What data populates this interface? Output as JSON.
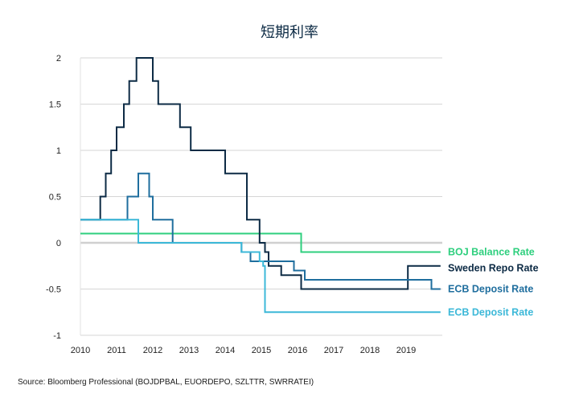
{
  "chart_data": {
    "type": "line",
    "title": "短期利率",
    "source": "Source: Bloomberg Professional (BOJDPBAL, EUORDEPO, SZLTTR, SWRRATEI)",
    "xlabel": "",
    "ylabel": "",
    "xlim": [
      2010,
      2020
    ],
    "ylim": [
      -1,
      2
    ],
    "x_ticks": [
      "2010",
      "2011",
      "2012",
      "2013",
      "2014",
      "2015",
      "2016",
      "2017",
      "2018",
      "2019"
    ],
    "y_ticks": [
      "2",
      "1.5",
      "1",
      "0.5",
      "0",
      "-0.5",
      "-1"
    ],
    "grid": true,
    "legend_position": "right",
    "series": [
      {
        "name": "BOJ Balance Rate",
        "color": "#2ecf7e",
        "points": [
          [
            2010.0,
            0.1
          ],
          [
            2016.1,
            0.1
          ],
          [
            2016.1,
            -0.1
          ],
          [
            2019.95,
            -0.1
          ]
        ]
      },
      {
        "name": "Sweden Repo Rate",
        "color": "#0d2b45",
        "points": [
          [
            2010.0,
            0.25
          ],
          [
            2010.55,
            0.25
          ],
          [
            2010.55,
            0.5
          ],
          [
            2010.7,
            0.5
          ],
          [
            2010.7,
            0.75
          ],
          [
            2010.85,
            0.75
          ],
          [
            2010.85,
            1.0
          ],
          [
            2011.0,
            1.0
          ],
          [
            2011.0,
            1.25
          ],
          [
            2011.2,
            1.25
          ],
          [
            2011.2,
            1.5
          ],
          [
            2011.35,
            1.5
          ],
          [
            2011.35,
            1.75
          ],
          [
            2011.55,
            1.75
          ],
          [
            2011.55,
            2.0
          ],
          [
            2012.0,
            2.0
          ],
          [
            2012.0,
            1.75
          ],
          [
            2012.15,
            1.75
          ],
          [
            2012.15,
            1.5
          ],
          [
            2012.75,
            1.5
          ],
          [
            2012.75,
            1.25
          ],
          [
            2013.05,
            1.25
          ],
          [
            2013.05,
            1.0
          ],
          [
            2014.0,
            1.0
          ],
          [
            2014.0,
            0.75
          ],
          [
            2014.6,
            0.75
          ],
          [
            2014.6,
            0.25
          ],
          [
            2014.95,
            0.25
          ],
          [
            2014.95,
            0.0
          ],
          [
            2015.1,
            0.0
          ],
          [
            2015.1,
            -0.1
          ],
          [
            2015.2,
            -0.1
          ],
          [
            2015.2,
            -0.25
          ],
          [
            2015.55,
            -0.25
          ],
          [
            2015.55,
            -0.35
          ],
          [
            2016.1,
            -0.35
          ],
          [
            2016.1,
            -0.5
          ],
          [
            2019.05,
            -0.5
          ],
          [
            2019.05,
            -0.25
          ],
          [
            2019.95,
            -0.25
          ]
        ]
      },
      {
        "name": "ECB Deposit Rate",
        "color": "#1f6e9e",
        "points": [
          [
            2010.0,
            0.25
          ],
          [
            2011.3,
            0.25
          ],
          [
            2011.3,
            0.5
          ],
          [
            2011.6,
            0.5
          ],
          [
            2011.6,
            0.75
          ],
          [
            2011.9,
            0.75
          ],
          [
            2011.9,
            0.5
          ],
          [
            2012.0,
            0.5
          ],
          [
            2012.0,
            0.25
          ],
          [
            2012.55,
            0.25
          ],
          [
            2012.55,
            0.0
          ],
          [
            2014.45,
            0.0
          ],
          [
            2014.45,
            -0.1
          ],
          [
            2014.7,
            -0.1
          ],
          [
            2014.7,
            -0.2
          ],
          [
            2015.9,
            -0.2
          ],
          [
            2015.9,
            -0.3
          ],
          [
            2016.2,
            -0.3
          ],
          [
            2016.2,
            -0.4
          ],
          [
            2019.7,
            -0.4
          ],
          [
            2019.7,
            -0.5
          ],
          [
            2019.95,
            -0.5
          ]
        ]
      },
      {
        "name": "ECB Deposit Rate",
        "color": "#3cb8d8",
        "points": [
          [
            2010.0,
            0.25
          ],
          [
            2011.6,
            0.25
          ],
          [
            2011.6,
            0.0
          ],
          [
            2014.45,
            0.0
          ],
          [
            2014.45,
            -0.1
          ],
          [
            2014.95,
            -0.1
          ],
          [
            2014.95,
            -0.2
          ],
          [
            2015.05,
            -0.2
          ],
          [
            2015.05,
            -0.25
          ],
          [
            2015.1,
            -0.25
          ],
          [
            2015.1,
            -0.75
          ],
          [
            2019.95,
            -0.75
          ]
        ]
      }
    ]
  }
}
